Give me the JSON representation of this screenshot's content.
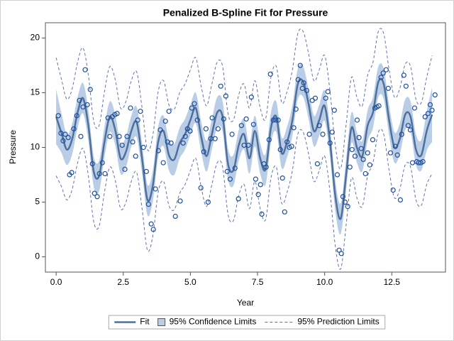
{
  "chart_data": {
    "type": "line",
    "title": "Penalized B-Spline Fit for Pressure",
    "xlabel": "Year",
    "ylabel": "Pressure",
    "xlim": [
      -0.4,
      14.5
    ],
    "ylim": [
      -1.4,
      21.4
    ],
    "xticks": [
      {
        "value": 0,
        "label": "0.0"
      },
      2.5,
      {
        "value": 5,
        "label": "5.0"
      },
      7.5,
      {
        "value": 10,
        "label": "10.0"
      },
      12.5
    ],
    "yticks": [
      0,
      5,
      10,
      15,
      20
    ],
    "x": [
      0,
      0.2,
      0.4,
      0.6,
      0.8,
      1,
      1.2,
      1.4,
      1.6,
      1.8,
      2,
      2.2,
      2.4,
      2.6,
      2.8,
      3,
      3.2,
      3.4,
      3.6,
      3.8,
      4,
      4.2,
      4.4,
      4.6,
      4.8,
      5,
      5.2,
      5.4,
      5.6,
      5.8,
      6,
      6.2,
      6.4,
      6.6,
      6.8,
      7,
      7.2,
      7.4,
      7.6,
      7.8,
      8,
      8.2,
      8.4,
      8.6,
      8.8,
      9,
      9.2,
      9.4,
      9.6,
      9.8,
      10,
      10.2,
      10.4,
      10.6,
      10.8,
      11,
      11.2,
      11.4,
      11.6,
      11.8,
      12,
      12.2,
      12.4,
      12.6,
      12.8,
      13,
      13.2,
      13.4,
      13.6,
      13.8,
      14
    ],
    "series": [
      {
        "name": "Fit",
        "color": "#4f6f9c",
        "values": [
          12.8,
          11.3,
          9.8,
          10.8,
          13.2,
          14.5,
          12.0,
          7.8,
          7.4,
          10.5,
          12.8,
          11.6,
          9.0,
          9.6,
          11.5,
          12.3,
          9.0,
          5.2,
          6.5,
          10.5,
          11.5,
          9.3,
          8.9,
          10.4,
          11.2,
          12.5,
          13.6,
          11.0,
          9.2,
          11.2,
          13.2,
          12.8,
          8.5,
          7.9,
          10.2,
          11.2,
          9.0,
          11.5,
          9.0,
          8.0,
          11.8,
          12.8,
          9.5,
          10.5,
          12.5,
          15.8,
          16.0,
          14.0,
          11.5,
          12.5,
          13.8,
          10.5,
          5.5,
          3.5,
          7.5,
          11.8,
          10.0,
          9.2,
          12.0,
          13.2,
          16.0,
          15.8,
          12.5,
          10.0,
          10.8,
          13.0,
          12.8,
          9.8,
          9.3,
          11.5,
          13.0
        ]
      }
    ],
    "confidence": {
      "name": "95% Confidence Limits",
      "color": "#b9cde6",
      "lower": [
        10.3,
        9.5,
        8.4,
        9.4,
        11.8,
        13.1,
        10.6,
        6.4,
        6.0,
        9.1,
        11.4,
        10.2,
        7.6,
        8.2,
        10.1,
        10.9,
        7.6,
        3.8,
        5.1,
        9.1,
        10.1,
        7.9,
        7.5,
        9.0,
        9.8,
        11.1,
        12.2,
        9.6,
        7.8,
        9.8,
        11.8,
        11.4,
        7.1,
        6.5,
        8.8,
        9.8,
        7.6,
        10.1,
        7.6,
        6.6,
        10.4,
        11.4,
        8.1,
        9.1,
        11.1,
        14.4,
        14.6,
        12.6,
        10.1,
        11.1,
        12.4,
        9.1,
        4.1,
        2.1,
        6.1,
        10.4,
        8.6,
        7.8,
        10.6,
        11.8,
        14.6,
        14.4,
        11.1,
        8.6,
        9.4,
        11.6,
        11.4,
        8.4,
        7.9,
        9.7,
        10.5
      ],
      "upper": [
        15.3,
        13.1,
        11.2,
        12.2,
        14.6,
        15.9,
        13.4,
        9.2,
        8.8,
        11.9,
        14.2,
        13.0,
        10.4,
        11.0,
        12.9,
        13.7,
        10.4,
        6.6,
        7.9,
        11.9,
        12.9,
        10.7,
        10.3,
        11.8,
        12.6,
        13.9,
        15.0,
        12.4,
        10.6,
        12.6,
        14.6,
        14.2,
        9.9,
        9.3,
        11.6,
        12.6,
        10.4,
        12.9,
        10.4,
        9.4,
        13.2,
        14.2,
        10.9,
        11.9,
        13.9,
        17.2,
        17.4,
        15.4,
        12.9,
        13.9,
        15.2,
        11.9,
        6.9,
        4.9,
        8.9,
        13.2,
        11.4,
        10.6,
        13.4,
        14.6,
        17.4,
        17.2,
        13.9,
        11.4,
        12.2,
        14.4,
        14.2,
        11.2,
        10.7,
        13.3,
        15.5
      ]
    },
    "prediction": {
      "name": "95% Prediction Limits",
      "color": "#5e72b0",
      "lower": [
        7.4,
        6.4,
        5.2,
        6.2,
        8.6,
        9.9,
        7.4,
        3.2,
        2.8,
        5.9,
        8.2,
        7.0,
        4.4,
        5.0,
        6.9,
        7.7,
        4.4,
        0.6,
        1.9,
        5.9,
        6.9,
        4.7,
        4.3,
        5.8,
        6.6,
        7.9,
        9.0,
        6.4,
        4.6,
        6.6,
        8.6,
        8.2,
        3.9,
        3.3,
        5.6,
        6.6,
        4.4,
        6.9,
        4.4,
        3.4,
        7.2,
        8.2,
        4.9,
        5.9,
        7.9,
        11.2,
        11.4,
        9.4,
        6.9,
        7.9,
        9.2,
        5.9,
        0.9,
        -1.1,
        2.9,
        7.2,
        5.4,
        4.6,
        7.4,
        8.6,
        11.4,
        11.2,
        7.9,
        5.4,
        6.2,
        8.4,
        8.2,
        5.2,
        4.7,
        6.6,
        7.6
      ],
      "upper": [
        18.2,
        16.2,
        14.4,
        15.4,
        17.8,
        19.1,
        16.6,
        12.4,
        12.0,
        15.1,
        17.4,
        16.2,
        13.6,
        14.2,
        16.1,
        16.9,
        13.6,
        9.8,
        11.1,
        15.1,
        16.1,
        13.9,
        13.5,
        15.0,
        15.8,
        17.1,
        18.2,
        15.6,
        13.8,
        15.8,
        17.8,
        17.4,
        13.1,
        12.5,
        14.8,
        15.8,
        13.6,
        16.1,
        13.6,
        12.6,
        16.4,
        17.4,
        14.1,
        15.1,
        17.1,
        20.4,
        20.6,
        18.6,
        16.1,
        17.1,
        18.4,
        15.1,
        10.1,
        8.1,
        12.1,
        16.4,
        14.6,
        13.8,
        16.6,
        17.8,
        20.6,
        20.4,
        17.1,
        14.6,
        15.4,
        17.6,
        17.4,
        14.4,
        14.1,
        16.4,
        18.4
      ]
    },
    "scatter": {
      "color": "#1f4e9c",
      "x": [
        0.08,
        0.18,
        0.26,
        0.34,
        0.45,
        0.5,
        0.58,
        0.66,
        0.77,
        0.87,
        0.92,
        1.0,
        1.08,
        1.16,
        1.27,
        1.35,
        1.43,
        1.53,
        1.61,
        1.72,
        1.82,
        1.93,
        2.0,
        2.09,
        2.19,
        2.27,
        2.35,
        2.46,
        2.56,
        2.64,
        2.77,
        2.85,
        2.96,
        3.04,
        3.14,
        3.25,
        3.36,
        3.44,
        3.54,
        3.62,
        3.7,
        3.81,
        3.88,
        3.99,
        4.07,
        4.15,
        4.2,
        4.28,
        4.44,
        4.62,
        4.73,
        4.81,
        4.89,
        4.99,
        5.05,
        5.15,
        5.26,
        5.39,
        5.5,
        5.58,
        5.66,
        5.76,
        5.81,
        5.92,
        6.03,
        6.13,
        6.24,
        6.32,
        6.37,
        6.48,
        6.55,
        6.66,
        6.79,
        6.9,
        7.0,
        7.08,
        7.16,
        7.27,
        7.35,
        7.43,
        7.53,
        7.61,
        7.66,
        7.74,
        7.82,
        7.93,
        7.98,
        8.09,
        8.19,
        8.27,
        8.35,
        8.43,
        8.51,
        8.6,
        8.69,
        8.77,
        8.85,
        8.93,
        9.01,
        9.09,
        9.17,
        9.22,
        9.33,
        9.43,
        9.54,
        9.65,
        9.73,
        9.8,
        9.93,
        10.04,
        10.12,
        10.2,
        10.28,
        10.36,
        10.47,
        10.54,
        10.62,
        10.68,
        10.76,
        10.86,
        10.94,
        11.02,
        11.13,
        11.21,
        11.28,
        11.36,
        11.44,
        11.52,
        11.6,
        11.68,
        11.79,
        11.87,
        11.95,
        12.02,
        12.1,
        12.18,
        12.29,
        12.37,
        12.45,
        12.55,
        12.63,
        12.71,
        12.82,
        12.87,
        12.95,
        13.03,
        13.11,
        13.19,
        13.27,
        13.35,
        13.43,
        13.5,
        13.58,
        13.66,
        13.74,
        13.85,
        13.93,
        14.0,
        14.11
      ],
      "y": [
        12.9,
        11.3,
        10.6,
        11.2,
        10.9,
        7.5,
        7.7,
        11.7,
        12.9,
        14.3,
        11.0,
        13.7,
        17.1,
        13.9,
        15.3,
        8.5,
        5.8,
        5.5,
        7.6,
        8.6,
        7.6,
        12.7,
        11.0,
        12.8,
        13.0,
        13.1,
        11.0,
        10.2,
        8.0,
        11.0,
        13.6,
        10.5,
        9.2,
        12.5,
        13.3,
        10.0,
        7.8,
        4.8,
        3.0,
        2.5,
        6.2,
        9.7,
        11.6,
        8.6,
        12.4,
        10.5,
        13.3,
        10.4,
        3.7,
        5.1,
        10.4,
        11.0,
        11.7,
        11.5,
        13.6,
        14.0,
        12.5,
        6.3,
        9.6,
        11.7,
        5.0,
        10.8,
        12.7,
        10.8,
        11.7,
        15.6,
        12.6,
        14.7,
        7.8,
        7.1,
        11.2,
        8.1,
        5.3,
        12.0,
        10.2,
        12.6,
        10.2,
        14.6,
        12.1,
        7.1,
        5.7,
        6.6,
        3.9,
        8.5,
        8.2,
        10.7,
        16.7,
        12.5,
        12.5,
        12.5,
        9.8,
        7.2,
        4.1,
        10.5,
        10.0,
        10.1,
        11.8,
        13.5,
        16.2,
        17.5,
        15.4,
        15.9,
        15.2,
        11.2,
        14.3,
        14.5,
        8.5,
        12.0,
        11.2,
        14.5,
        15.1,
        10.4,
        11.4,
        13.4,
        7.5,
        0.6,
        0.3,
        5.5,
        5.0,
        4.6,
        8.2,
        9.8,
        9.2,
        12.5,
        10.9,
        9.9,
        8.9,
        7.6,
        9.5,
        8.4,
        10.7,
        13.6,
        13.7,
        13.8,
        16.4,
        16.8,
        17.1,
        15.4,
        9.5,
        6.1,
        10.1,
        9.3,
        5.2,
        11.2,
        16.6,
        15.6,
        12.0,
        11.6,
        8.6,
        13.6,
        8.7,
        8.6,
        8.6,
        8.7,
        12.8,
        13.1,
        13.9,
        13.4,
        14.8
      ]
    }
  }
}
